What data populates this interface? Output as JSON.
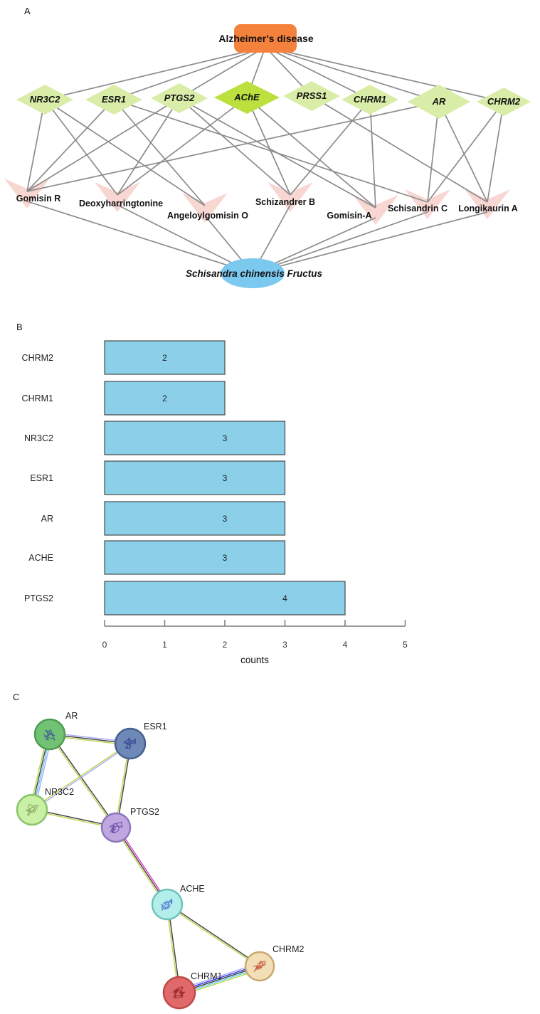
{
  "figure": {
    "panels": {
      "a": "A",
      "b": "B",
      "c": "C"
    }
  },
  "panel_a": {
    "disease": "Alzheimer's disease",
    "herb": "Schisandra chinensis Fructus",
    "genes": [
      "NR3C2",
      "ESR1",
      "PTGS2",
      "AChE",
      "PRSS1",
      "CHRM1",
      "AR",
      "CHRM2"
    ],
    "highlighted_gene": "AChE",
    "compounds": [
      "Gomisin R",
      "Deoxyharringtonine",
      "Angeloylgomisin O",
      "Schizandrer B",
      "Gomisin-A",
      "Schisandrin C",
      "Longikaurin A"
    ],
    "disease_gene_edges": [
      "NR3C2",
      "ESR1",
      "PTGS2",
      "AChE",
      "PRSS1",
      "CHRM1",
      "AR",
      "CHRM2"
    ],
    "gene_compound_edges": [
      [
        "NR3C2",
        "Gomisin R"
      ],
      [
        "NR3C2",
        "Deoxyharringtonine"
      ],
      [
        "NR3C2",
        "Angeloylgomisin O"
      ],
      [
        "ESR1",
        "Gomisin R"
      ],
      [
        "ESR1",
        "Angeloylgomisin O"
      ],
      [
        "ESR1",
        "Schisandrin C"
      ],
      [
        "PTGS2",
        "Gomisin R"
      ],
      [
        "PTGS2",
        "Deoxyharringtonine"
      ],
      [
        "PTGS2",
        "Schizandrer B"
      ],
      [
        "PTGS2",
        "Gomisin-A"
      ],
      [
        "AChE",
        "Deoxyharringtonine"
      ],
      [
        "AChE",
        "Schizandrer B"
      ],
      [
        "AChE",
        "Gomisin-A"
      ],
      [
        "PRSS1",
        "Longikaurin A"
      ],
      [
        "CHRM1",
        "Schizandrer B"
      ],
      [
        "CHRM1",
        "Gomisin-A"
      ],
      [
        "AR",
        "Gomisin R"
      ],
      [
        "AR",
        "Schisandrin C"
      ],
      [
        "AR",
        "Longikaurin A"
      ],
      [
        "CHRM2",
        "Schisandrin C"
      ],
      [
        "CHRM2",
        "Longikaurin A"
      ]
    ],
    "compound_herb_edges": [
      "Gomisin R",
      "Deoxyharringtonine",
      "Angeloylgomisin O",
      "Schizandrer B",
      "Gomisin-A",
      "Schisandrin C",
      "Longikaurin A"
    ],
    "colors": {
      "disease_fill": "#F5823C",
      "gene_fill": "#D9EDA8",
      "highlight_gene_fill": "#BCE13E",
      "compound_fill": "#F8D7D2",
      "herb_fill": "#7CC9EF",
      "edge": "#8C8C8C"
    }
  },
  "chart_data": {
    "type": "bar",
    "orientation": "horizontal",
    "title": "",
    "categories": [
      "CHRM2",
      "CHRM1",
      "NR3C2",
      "ESR1",
      "AR",
      "ACHE",
      "PTGS2"
    ],
    "values": [
      2,
      2,
      3,
      3,
      3,
      3,
      4
    ],
    "xlabel": "counts",
    "ylabel": "",
    "xlim": [
      0,
      5
    ],
    "xticks": [
      0,
      1,
      2,
      3,
      4,
      5
    ],
    "grid": false,
    "bar_color": "#8BCFE9",
    "bar_border": "#4A4A4A"
  },
  "panel_c": {
    "nodes": [
      {
        "id": "AR",
        "label": "AR",
        "fill": "#72C274",
        "border": "#4E9B52",
        "glyph": "#3A55A0"
      },
      {
        "id": "ESR1",
        "label": "ESR1",
        "fill": "#6E88B8",
        "border": "#46608F",
        "glyph": "#2E3F8F"
      },
      {
        "id": "NR3C2",
        "label": "NR3C2",
        "fill": "#C9F0A5",
        "border": "#88C46A",
        "glyph": "#86A05A"
      },
      {
        "id": "PTGS2",
        "label": "PTGS2",
        "fill": "#BFA8E0",
        "border": "#8F74BC",
        "glyph": "#5F3FA0"
      },
      {
        "id": "ACHE",
        "label": "ACHE",
        "fill": "#B2EFEA",
        "border": "#6EC2BC",
        "glyph": "#4A6FD0"
      },
      {
        "id": "CHRM2",
        "label": "CHRM2",
        "fill": "#F2DFB8",
        "border": "#C9A96E",
        "glyph": "#C05030"
      },
      {
        "id": "CHRM1",
        "label": "CHRM1",
        "fill": "#E06A6A",
        "border": "#C04848",
        "glyph": "#8A2020"
      }
    ],
    "edges": [
      {
        "from": "AR",
        "to": "ESR1",
        "colors": [
          "#A8AAF8",
          "#3C3C3C",
          "#B7D64A"
        ]
      },
      {
        "from": "AR",
        "to": "NR3C2",
        "colors": [
          "#A8AAF8",
          "#57C8E8",
          "#3C3C3C",
          "#B7D64A"
        ]
      },
      {
        "from": "AR",
        "to": "PTGS2",
        "colors": [
          "#3C3C3C",
          "#B7D64A"
        ]
      },
      {
        "from": "ESR1",
        "to": "NR3C2",
        "colors": [
          "#A8AAF8",
          "#B7D64A"
        ]
      },
      {
        "from": "ESR1",
        "to": "PTGS2",
        "colors": [
          "#3C3C3C",
          "#B7D64A"
        ]
      },
      {
        "from": "NR3C2",
        "to": "PTGS2",
        "colors": [
          "#3C3C3C",
          "#B7D64A"
        ]
      },
      {
        "from": "PTGS2",
        "to": "ACHE",
        "colors": [
          "#E83ACF",
          "#3C3C3C",
          "#B7D64A"
        ]
      },
      {
        "from": "ACHE",
        "to": "CHRM2",
        "colors": [
          "#3C3C3C",
          "#B7D64A"
        ]
      },
      {
        "from": "ACHE",
        "to": "CHRM1",
        "colors": [
          "#3C3C3C",
          "#B7D64A"
        ]
      },
      {
        "from": "CHRM1",
        "to": "CHRM2",
        "colors": [
          "#A8AAF8",
          "#2E34E8",
          "#3C3C3C",
          "#57C8E8",
          "#B7D64A"
        ]
      }
    ]
  }
}
